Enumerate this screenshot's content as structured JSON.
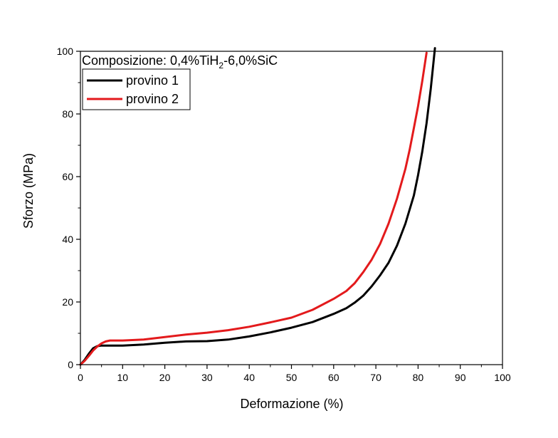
{
  "chart_data": {
    "type": "line",
    "annotation": {
      "prefix": "Composizione: 0,4%TiH",
      "subscript": "2",
      "suffix": "-6,0%SiC"
    },
    "xlabel": "Deformazione (%)",
    "ylabel": "Sforzo (MPa)",
    "xlim": [
      0,
      100
    ],
    "ylim": [
      0,
      100
    ],
    "xticks": [
      0,
      10,
      20,
      30,
      40,
      50,
      60,
      70,
      80,
      90,
      100
    ],
    "yticks": [
      0,
      20,
      40,
      60,
      80,
      100
    ],
    "grid": false,
    "legend": "top-left",
    "series": [
      {
        "name": "provino 1",
        "color": "#000000",
        "x": [
          0,
          1,
          2,
          3,
          4,
          5,
          6,
          8,
          10,
          15,
          20,
          25,
          30,
          35,
          40,
          45,
          50,
          55,
          60,
          63,
          65,
          67,
          69,
          71,
          73,
          75,
          77,
          79,
          80,
          81,
          82,
          83,
          84
        ],
        "y": [
          0,
          1.5,
          3.5,
          5.2,
          5.9,
          6.1,
          6.1,
          6.1,
          6.1,
          6.4,
          7.0,
          7.4,
          7.5,
          8.0,
          9.0,
          10.3,
          11.8,
          13.6,
          16.2,
          18.0,
          19.8,
          22.0,
          25.0,
          28.5,
          32.5,
          38.0,
          45.0,
          54.0,
          60.5,
          68.0,
          77.0,
          88.0,
          101
        ]
      },
      {
        "name": "provino 2",
        "color": "#e31a1c",
        "x": [
          0,
          1,
          2,
          3,
          4,
          5,
          6,
          7,
          8,
          10,
          15,
          20,
          25,
          30,
          35,
          40,
          45,
          50,
          55,
          60,
          63,
          65,
          67,
          69,
          71,
          73,
          75,
          77,
          78,
          79,
          80,
          81,
          82
        ],
        "y": [
          0,
          1.2,
          2.8,
          4.5,
          5.8,
          6.8,
          7.4,
          7.7,
          7.7,
          7.7,
          8.0,
          8.8,
          9.6,
          10.2,
          11.0,
          12.1,
          13.5,
          15.0,
          17.5,
          21.0,
          23.5,
          26.0,
          29.5,
          33.5,
          38.5,
          45.0,
          53.0,
          62.5,
          68.5,
          75.5,
          82.5,
          90.5,
          99.5
        ]
      }
    ]
  }
}
